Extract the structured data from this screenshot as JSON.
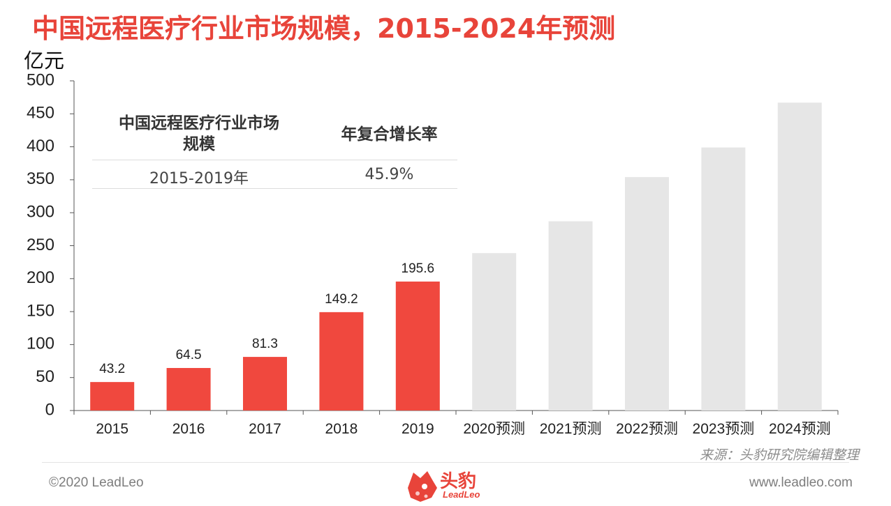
{
  "title": "中国远程医疗行业市场规模，2015-2024年预测",
  "unit": "亿元",
  "inset": {
    "col1_header": "中国远程医疗行业市场规模",
    "col2_header": "年复合增长率",
    "period": "2015-2019年",
    "cagr": "45.9%"
  },
  "source": "来源：头豹研究院编辑整理",
  "footer": {
    "copyright": "©2020 LeadLeo",
    "website": "www.leadleo.com",
    "logo_cn": "头豹",
    "logo_en": "LeadLeo"
  },
  "colors": {
    "title": "#e8443a",
    "actual_bar": "#f0483e",
    "forecast_bar": "#e6e6e6"
  },
  "chart_data": {
    "type": "bar",
    "title": "中国远程医疗行业市场规模，2015-2024年预测",
    "ylabel": "亿元",
    "ylim": [
      0,
      500
    ],
    "yticks": [
      0,
      50,
      100,
      150,
      200,
      250,
      300,
      350,
      400,
      450,
      500
    ],
    "grid": false,
    "categories": [
      "2015",
      "2016",
      "2017",
      "2018",
      "2019",
      "2020预测",
      "2021预测",
      "2022预测",
      "2023预测",
      "2024预测"
    ],
    "values": [
      43.2,
      64.5,
      81.3,
      149.2,
      195.6,
      238.7,
      287.0,
      354.0,
      399.0,
      467.0
    ],
    "data_labels": [
      "43.2",
      "64.5",
      "81.3",
      "149.2",
      "195.6",
      "",
      "",
      "",
      "",
      ""
    ],
    "forecast_from_index": 5
  }
}
